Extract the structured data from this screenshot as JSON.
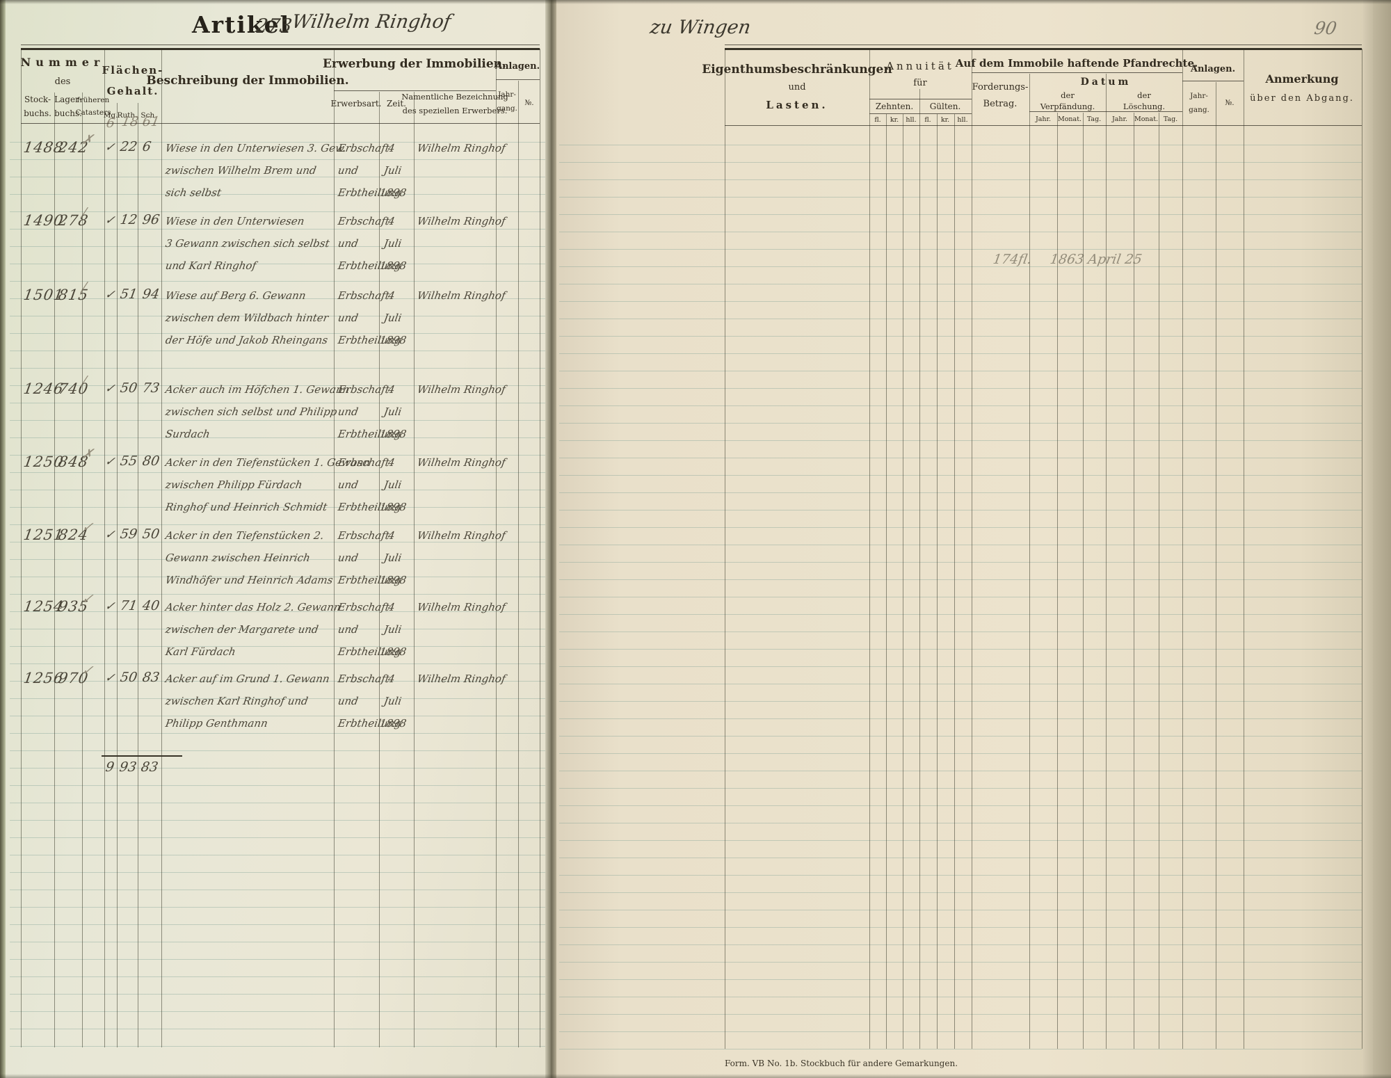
{
  "palette": {
    "ink": "#4b4639",
    "pencil": "#948d7b",
    "paper_left": "#e7e7d6",
    "paper_right": "#e9e0ca",
    "ruling": "#8fb0a6"
  },
  "header": {
    "stamp": "Artikel",
    "article_no": "273",
    "owner": "Wilhelm Ringhof",
    "place": "zu Wingen",
    "page_number": "90"
  },
  "left_table": {
    "headers": {
      "nummer": "Nummer",
      "des": "des",
      "sub_stock": [
        "Stock-",
        "buchs."
      ],
      "sub_lager": [
        "Lager-",
        "buchs."
      ],
      "sub_cataster": [
        "früheren",
        "Catasters"
      ],
      "flaechen": [
        "Flächen-",
        "Gehalt."
      ],
      "units": [
        "Mg.",
        "Ruth.",
        "Sch."
      ],
      "beschreibung": "Beschreibung der Immobilien.",
      "erwerbung": "Erwerbung der Immobilien.",
      "erwerbsart": "Erwerbsart.",
      "zeit": "Zeit.",
      "namentlich": [
        "Namentliche Bezeichnung",
        "des speziellen Erwerbers."
      ],
      "anlagen": "Anlagen.",
      "jahrgang": [
        "Jahr-",
        "gang."
      ],
      "no": "№."
    },
    "pre_row": {
      "mg": "6",
      "ruth": "18",
      "sch": "61"
    },
    "rows": [
      {
        "stockbuchs": "1488",
        "lagerbuchs": "242",
        "pencil": "✗",
        "check": "✓",
        "ruth": "22",
        "sch": "6",
        "description": [
          "Wiese in den Unterwiesen 3. Gew.",
          "zwischen Wilhelm Brem und",
          "sich selbst"
        ],
        "erwerbsart": [
          "Erbschaft",
          "und",
          "Erbtheilung"
        ],
        "zeit": [
          "4",
          "Juli",
          "1898"
        ],
        "erwerber": "Wilhelm Ringhof"
      },
      {
        "stockbuchs": "1490",
        "lagerbuchs": "278",
        "pencil": "∕",
        "check": "✓",
        "ruth": "12",
        "sch": "96",
        "description": [
          "Wiese in den Unterwiesen",
          "3 Gewann zwischen sich selbst",
          "und Karl Ringhof"
        ],
        "erwerbsart": [
          "Erbschaft",
          "und",
          "Erbtheilung"
        ],
        "zeit": [
          "4",
          "Juli",
          "1898"
        ],
        "erwerber": "Wilhelm Ringhof"
      },
      {
        "stockbuchs": "1501",
        "lagerbuchs": "815",
        "pencil": "∕",
        "check": "✓",
        "ruth": "51",
        "sch": "94",
        "description": [
          "Wiese auf Berg 6. Gewann",
          "zwischen dem Wildbach hinter",
          "der Höfe und Jakob Rheingans"
        ],
        "erwerbsart": [
          "Erbschaft",
          "und",
          "Erbtheilung"
        ],
        "zeit": [
          "4",
          "Juli",
          "1898"
        ],
        "erwerber": "Wilhelm Ringhof"
      },
      {
        "stockbuchs": "1246",
        "lagerbuchs": "740",
        "pencil": "∕",
        "check": "✓",
        "ruth": "50",
        "sch": "73",
        "description": [
          "Acker auch im Höfchen 1. Gewann",
          "zwischen sich selbst und Philipp",
          "Surdach"
        ],
        "erwerbsart": [
          "Erbschaft",
          "und",
          "Erbtheilung"
        ],
        "zeit": [
          "4",
          "Juli",
          "1898"
        ],
        "erwerber": "Wilhelm Ringhof"
      },
      {
        "stockbuchs": "1250",
        "lagerbuchs": "848",
        "pencil": "✗",
        "check": "✓",
        "ruth": "55",
        "sch": "80",
        "description": [
          "Acker in den Tiefenstücken 1. Gewann",
          "zwischen Philipp Fürdach",
          "Ringhof und Heinrich Schmidt"
        ],
        "erwerbsart": [
          "Erbschaft",
          "und",
          "Erbtheilung"
        ],
        "zeit": [
          "4",
          "Juli",
          "1898"
        ],
        "erwerber": "Wilhelm Ringhof"
      },
      {
        "stockbuchs": "1251",
        "lagerbuchs": "824",
        "pencil": "✓",
        "check": "✓",
        "ruth": "59",
        "sch": "50",
        "description": [
          "Acker in den Tiefenstücken 2.",
          "Gewann zwischen Heinrich",
          "Windhöfer und Heinrich Adams"
        ],
        "erwerbsart": [
          "Erbschaft",
          "und",
          "Erbtheilung"
        ],
        "zeit": [
          "4",
          "Juli",
          "1898"
        ],
        "erwerber": "Wilhelm Ringhof"
      },
      {
        "stockbuchs": "1254",
        "lagerbuchs": "935",
        "pencil": "✓",
        "check": "✓",
        "ruth": "71",
        "sch": "40",
        "description": [
          "Acker hinter das Holz 2. Gewann",
          "zwischen der Margarete und",
          "Karl Fürdach"
        ],
        "erwerbsart": [
          "Erbschaft",
          "und",
          "Erbtheilung"
        ],
        "zeit": [
          "4",
          "Juli",
          "1898"
        ],
        "erwerber": "Wilhelm Ringhof"
      },
      {
        "stockbuchs": "1256",
        "lagerbuchs": "970",
        "pencil": "✓",
        "check": "✓",
        "ruth": "50",
        "sch": "83",
        "description": [
          "Acker auf im Grund 1. Gewann",
          "zwischen Karl Ringhof und",
          "Philipp Genthmann"
        ],
        "erwerbsart": [
          "Erbschaft",
          "und",
          "Erbtheilung"
        ],
        "zeit": [
          "4",
          "Juli",
          "1898"
        ],
        "erwerber": "Wilhelm Ringhof"
      }
    ],
    "sum": {
      "mg": "9",
      "ruth": "93",
      "sch": "83"
    }
  },
  "right_table": {
    "headers": {
      "eigenthum": [
        "Eigenthumsbeschränkungen",
        "und",
        "Lasten."
      ],
      "annuitaet": [
        "Annuität",
        "für"
      ],
      "zehnten": "Zehnten.",
      "guelten": "Gülten.",
      "money_units": [
        "fl.",
        "kr.",
        "hll."
      ],
      "pfandrechte": "Auf dem Immobile haftende Pfandrechte.",
      "forderung": [
        "Forderungs-",
        "Betrag."
      ],
      "datum": "Datum",
      "verpfaendung": [
        "der",
        "Verpfändung."
      ],
      "loeschung": [
        "der",
        "Löschung."
      ],
      "date_units": [
        "Jahr.",
        "Monat.",
        "Tag."
      ],
      "anlagen": "Anlagen.",
      "jahrgang": [
        "Jahr-",
        "gang."
      ],
      "no": "№.",
      "anmerkung": [
        "Anmerkung",
        "über den Abgang."
      ]
    },
    "entry": {
      "betrag": "174fl.",
      "verpfaendung_datum": "1863 April 25"
    }
  },
  "footer": "Form. VB No. 1b.   Stockbuch für andere Gemarkungen."
}
